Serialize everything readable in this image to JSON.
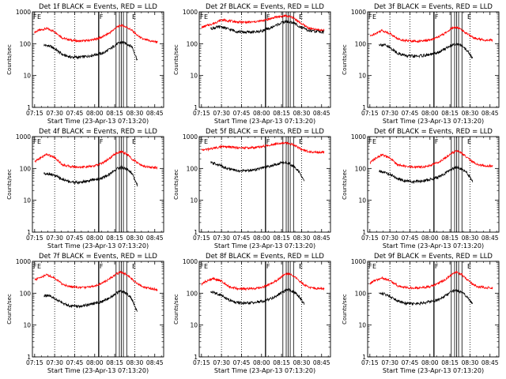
{
  "chart_data": [
    {
      "type": "line",
      "title": "Det 1f BLACK = Events, RED = LLD",
      "xlabel": "Start Time (23-Apr-13 07:13:20)",
      "ylabel": "Counts/sec",
      "yscale": "log",
      "ylim": [
        1,
        1000
      ],
      "xlim": [
        "07:13:20",
        "08:51:40"
      ],
      "x_ticks": [
        "07:15",
        "07:30",
        "07:45",
        "08:00",
        "08:15",
        "08:30",
        "08:45"
      ],
      "y_ticks": [
        "1",
        "10",
        "100",
        "1000"
      ],
      "event_marker_labels": [
        "F",
        "E",
        "F",
        "E"
      ],
      "series": [
        {
          "color": "#ff0000",
          "x": [
            "07:15",
            "07:18",
            "07:24",
            "07:30",
            "07:36",
            "07:42",
            "07:48",
            "07:54",
            "08:00",
            "08:06",
            "08:12",
            "08:16",
            "08:20",
            "08:24",
            "08:28",
            "08:32",
            "08:36",
            "08:42",
            "08:47"
          ],
          "values": [
            230,
            260,
            300,
            240,
            150,
            130,
            120,
            125,
            135,
            165,
            230,
            320,
            380,
            330,
            260,
            180,
            140,
            120,
            115
          ]
        },
        {
          "color": "#000000",
          "x": [
            "07:22",
            "07:26",
            "07:30",
            "07:36",
            "07:42",
            "07:48",
            "07:54",
            "08:00",
            "08:06",
            "08:12",
            "08:16",
            "08:20",
            "08:24",
            "08:28",
            "08:32"
          ],
          "values": [
            90,
            85,
            70,
            45,
            38,
            37,
            40,
            45,
            50,
            70,
            95,
            110,
            100,
            80,
            30
          ]
        }
      ]
    },
    {
      "type": "line",
      "title": "Det 2f BLACK = Events, RED = LLD",
      "xlabel": "Start Time (23-Apr-13 07:13:20)",
      "ylabel": "Counts/sec",
      "yscale": "log",
      "ylim": [
        1,
        1000
      ],
      "xlim": [
        "07:13:20",
        "08:51:40"
      ],
      "x_ticks": [
        "07:15",
        "07:30",
        "07:45",
        "08:00",
        "08:15",
        "08:30",
        "08:45"
      ],
      "y_ticks": [
        "1",
        "10",
        "100",
        "1000"
      ],
      "event_marker_labels": [
        "F",
        "E",
        "F",
        "E"
      ],
      "series": [
        {
          "color": "#ff0000",
          "x": [
            "07:15",
            "07:20",
            "07:25",
            "07:30",
            "07:36",
            "07:42",
            "07:48",
            "07:54",
            "08:00",
            "08:06",
            "08:12",
            "08:18",
            "08:24",
            "08:30",
            "08:36",
            "08:42",
            "08:47"
          ],
          "values": [
            320,
            380,
            450,
            560,
            520,
            480,
            470,
            480,
            520,
            600,
            700,
            750,
            650,
            420,
            300,
            270,
            265
          ]
        },
        {
          "color": "#000000",
          "x": [
            "07:22",
            "07:26",
            "07:30",
            "07:36",
            "07:42",
            "07:48",
            "07:54",
            "08:00",
            "08:06",
            "08:12",
            "08:18",
            "08:24",
            "08:30",
            "08:36",
            "08:42",
            "08:47"
          ],
          "values": [
            300,
            320,
            340,
            280,
            240,
            230,
            230,
            250,
            300,
            400,
            500,
            450,
            320,
            250,
            240,
            235
          ]
        }
      ]
    },
    {
      "type": "line",
      "title": "Det 3f BLACK = Events, RED = LLD",
      "xlabel": "Start Time (23-Apr-13 07:13:20)",
      "ylabel": "Counts/sec",
      "yscale": "log",
      "ylim": [
        1,
        1000
      ],
      "xlim": [
        "07:13:20",
        "08:51:40"
      ],
      "x_ticks": [
        "07:15",
        "07:30",
        "07:45",
        "08:00",
        "08:15",
        "08:30",
        "08:45"
      ],
      "y_ticks": [
        "1",
        "10",
        "100",
        "1000"
      ],
      "event_marker_labels": [
        "F",
        "E",
        "F",
        "E"
      ],
      "series": [
        {
          "color": "#ff0000",
          "x": [
            "07:15",
            "07:18",
            "07:24",
            "07:30",
            "07:36",
            "07:42",
            "07:48",
            "07:54",
            "08:00",
            "08:06",
            "08:12",
            "08:16",
            "08:20",
            "08:24",
            "08:28",
            "08:32",
            "08:36",
            "08:42",
            "08:47"
          ],
          "values": [
            170,
            200,
            260,
            210,
            140,
            125,
            120,
            120,
            130,
            160,
            220,
            300,
            330,
            270,
            200,
            160,
            140,
            130,
            130
          ]
        },
        {
          "color": "#000000",
          "x": [
            "07:22",
            "07:26",
            "07:30",
            "07:36",
            "07:42",
            "07:48",
            "07:54",
            "08:00",
            "08:06",
            "08:12",
            "08:16",
            "08:20",
            "08:24",
            "08:28",
            "08:32"
          ],
          "values": [
            95,
            90,
            75,
            50,
            42,
            40,
            42,
            45,
            52,
            72,
            90,
            100,
            85,
            60,
            35
          ]
        }
      ]
    },
    {
      "type": "line",
      "title": "Det 4f BLACK = Events, RED = LLD",
      "xlabel": "Start Time (23-Apr-13 07:13:20)",
      "ylabel": "Counts/sec",
      "yscale": "log",
      "ylim": [
        1,
        1000
      ],
      "xlim": [
        "07:13:20",
        "08:51:40"
      ],
      "x_ticks": [
        "07:15",
        "07:30",
        "07:45",
        "08:00",
        "08:15",
        "08:30",
        "08:45"
      ],
      "y_ticks": [
        "1",
        "10",
        "100",
        "1000"
      ],
      "event_marker_labels": [
        "F",
        "E",
        "F",
        "E"
      ],
      "series": [
        {
          "color": "#ff0000",
          "x": [
            "07:15",
            "07:18",
            "07:24",
            "07:30",
            "07:36",
            "07:42",
            "07:48",
            "07:54",
            "08:00",
            "08:06",
            "08:12",
            "08:16",
            "08:20",
            "08:24",
            "08:28",
            "08:32",
            "08:36",
            "08:42",
            "08:47"
          ],
          "values": [
            160,
            200,
            280,
            220,
            130,
            115,
            110,
            112,
            120,
            150,
            220,
            300,
            340,
            280,
            200,
            150,
            120,
            110,
            105
          ]
        },
        {
          "color": "#000000",
          "x": [
            "07:22",
            "07:26",
            "07:30",
            "07:36",
            "07:42",
            "07:48",
            "07:54",
            "08:00",
            "08:06",
            "08:12",
            "08:16",
            "08:20",
            "08:24",
            "08:28",
            "08:32"
          ],
          "values": [
            70,
            68,
            60,
            45,
            38,
            36,
            40,
            45,
            50,
            70,
            95,
            110,
            95,
            70,
            30
          ]
        }
      ]
    },
    {
      "type": "line",
      "title": "Det 5f BLACK = Events, RED = LLD",
      "xlabel": "Start Time (23-Apr-13 07:13:20)",
      "ylabel": "Counts/sec",
      "yscale": "log",
      "ylim": [
        1,
        1000
      ],
      "xlim": [
        "07:13:20",
        "08:51:40"
      ],
      "x_ticks": [
        "07:15",
        "07:30",
        "07:45",
        "08:00",
        "08:15",
        "08:30",
        "08:45"
      ],
      "y_ticks": [
        "1",
        "10",
        "100",
        "1000"
      ],
      "event_marker_labels": [
        "F",
        "E",
        "F",
        "E"
      ],
      "series": [
        {
          "color": "#ff0000",
          "x": [
            "07:15",
            "07:20",
            "07:25",
            "07:30",
            "07:36",
            "07:42",
            "07:48",
            "07:54",
            "08:00",
            "08:06",
            "08:12",
            "08:18",
            "08:24",
            "08:30",
            "08:36",
            "08:42",
            "08:47"
          ],
          "values": [
            380,
            400,
            440,
            480,
            470,
            450,
            440,
            450,
            480,
            540,
            620,
            640,
            560,
            400,
            330,
            320,
            320
          ]
        },
        {
          "color": "#000000",
          "x": [
            "07:22",
            "07:26",
            "07:30",
            "07:36",
            "07:42",
            "07:48",
            "07:54",
            "08:00",
            "08:06",
            "08:12",
            "08:18",
            "08:24",
            "08:28",
            "08:32"
          ],
          "values": [
            150,
            140,
            120,
            95,
            85,
            85,
            90,
            100,
            115,
            140,
            160,
            120,
            80,
            40
          ]
        }
      ]
    },
    {
      "type": "line",
      "title": "Det 6f BLACK = Events, RED = LLD",
      "xlabel": "Start Time (23-Apr-13 07:13:20)",
      "ylabel": "Counts/sec",
      "yscale": "log",
      "ylim": [
        1,
        1000
      ],
      "xlim": [
        "07:13:20",
        "08:51:40"
      ],
      "x_ticks": [
        "07:15",
        "07:30",
        "07:45",
        "08:00",
        "08:15",
        "08:30",
        "08:45"
      ],
      "y_ticks": [
        "1",
        "10",
        "100",
        "1000"
      ],
      "event_marker_labels": [
        "F",
        "E",
        "F",
        "E"
      ],
      "series": [
        {
          "color": "#ff0000",
          "x": [
            "07:15",
            "07:18",
            "07:24",
            "07:30",
            "07:36",
            "07:42",
            "07:48",
            "07:54",
            "08:00",
            "08:06",
            "08:12",
            "08:16",
            "08:20",
            "08:24",
            "08:28",
            "08:32",
            "08:36",
            "08:42",
            "08:47"
          ],
          "values": [
            150,
            190,
            270,
            210,
            130,
            115,
            110,
            112,
            122,
            155,
            220,
            300,
            360,
            300,
            220,
            160,
            130,
            120,
            120
          ]
        },
        {
          "color": "#000000",
          "x": [
            "07:22",
            "07:26",
            "07:30",
            "07:36",
            "07:42",
            "07:48",
            "07:54",
            "08:00",
            "08:06",
            "08:12",
            "08:16",
            "08:20",
            "08:24",
            "08:28",
            "08:32"
          ],
          "values": [
            80,
            75,
            65,
            48,
            40,
            38,
            40,
            45,
            52,
            72,
            95,
            110,
            95,
            70,
            40
          ]
        }
      ]
    },
    {
      "type": "line",
      "title": "Det 7f BLACK = Events, RED = LLD",
      "xlabel": "Start Time (23-Apr-13 07:13:20)",
      "ylabel": "Counts/sec",
      "yscale": "log",
      "ylim": [
        1,
        1000
      ],
      "xlim": [
        "07:13:20",
        "08:51:40"
      ],
      "x_ticks": [
        "07:15",
        "07:30",
        "07:45",
        "08:00",
        "08:15",
        "08:30",
        "08:45"
      ],
      "y_ticks": [
        "1",
        "10",
        "100",
        "1000"
      ],
      "event_marker_labels": [
        "F",
        "E",
        "F",
        "E"
      ],
      "series": [
        {
          "color": "#ff0000",
          "x": [
            "07:15",
            "07:18",
            "07:24",
            "07:30",
            "07:36",
            "07:42",
            "07:48",
            "07:54",
            "08:00",
            "08:06",
            "08:12",
            "08:16",
            "08:20",
            "08:24",
            "08:28",
            "08:32",
            "08:36",
            "08:42",
            "08:47"
          ],
          "values": [
            260,
            300,
            380,
            300,
            190,
            160,
            150,
            155,
            170,
            210,
            300,
            400,
            460,
            380,
            280,
            200,
            160,
            140,
            130
          ]
        },
        {
          "color": "#000000",
          "x": [
            "07:22",
            "07:26",
            "07:30",
            "07:36",
            "07:42",
            "07:48",
            "07:54",
            "08:00",
            "08:06",
            "08:12",
            "08:16",
            "08:20",
            "08:24",
            "08:28",
            "08:32"
          ],
          "values": [
            85,
            80,
            68,
            48,
            40,
            38,
            42,
            48,
            55,
            75,
            100,
            115,
            95,
            65,
            25
          ]
        }
      ]
    },
    {
      "type": "line",
      "title": "Det 8f BLACK = Events, RED = LLD",
      "xlabel": "Start Time (23-Apr-13 07:13:20)",
      "ylabel": "Counts/sec",
      "yscale": "log",
      "ylim": [
        1,
        1000
      ],
      "xlim": [
        "07:13:20",
        "08:51:40"
      ],
      "x_ticks": [
        "07:15",
        "07:30",
        "07:45",
        "08:00",
        "08:15",
        "08:30",
        "08:45"
      ],
      "y_ticks": [
        "1",
        "10",
        "100",
        "1000"
      ],
      "event_marker_labels": [
        "F",
        "E",
        "F",
        "E"
      ],
      "series": [
        {
          "color": "#ff0000",
          "x": [
            "07:15",
            "07:18",
            "07:24",
            "07:30",
            "07:36",
            "07:42",
            "07:48",
            "07:54",
            "08:00",
            "08:06",
            "08:12",
            "08:16",
            "08:20",
            "08:24",
            "08:28",
            "08:32",
            "08:36",
            "08:42",
            "08:47"
          ],
          "values": [
            190,
            230,
            290,
            240,
            160,
            140,
            135,
            140,
            150,
            190,
            260,
            360,
            420,
            350,
            250,
            180,
            150,
            140,
            135
          ]
        },
        {
          "color": "#000000",
          "x": [
            "07:22",
            "07:26",
            "07:30",
            "07:36",
            "07:42",
            "07:48",
            "07:54",
            "08:00",
            "08:06",
            "08:12",
            "08:16",
            "08:20",
            "08:24",
            "08:28",
            "08:32"
          ],
          "values": [
            110,
            100,
            85,
            60,
            50,
            48,
            50,
            55,
            65,
            85,
            110,
            130,
            110,
            80,
            45
          ]
        }
      ]
    },
    {
      "type": "line",
      "title": "Det 9f BLACK = Events, RED = LLD",
      "xlabel": "Start Time (23-Apr-13 07:13:20)",
      "ylabel": "Counts/sec",
      "yscale": "log",
      "ylim": [
        1,
        1000
      ],
      "xlim": [
        "07:13:20",
        "08:51:40"
      ],
      "x_ticks": [
        "07:15",
        "07:30",
        "07:45",
        "08:00",
        "08:15",
        "08:30",
        "08:45"
      ],
      "y_ticks": [
        "1",
        "10",
        "100",
        "1000"
      ],
      "event_marker_labels": [
        "F",
        "E",
        "F",
        "E"
      ],
      "series": [
        {
          "color": "#ff0000",
          "x": [
            "07:15",
            "07:18",
            "07:24",
            "07:30",
            "07:36",
            "07:42",
            "07:48",
            "07:54",
            "08:00",
            "08:06",
            "08:12",
            "08:16",
            "08:20",
            "08:24",
            "08:28",
            "08:32",
            "08:36",
            "08:42",
            "08:47"
          ],
          "values": [
            200,
            240,
            300,
            250,
            170,
            150,
            145,
            150,
            160,
            200,
            280,
            380,
            450,
            380,
            270,
            190,
            160,
            150,
            150
          ]
        },
        {
          "color": "#000000",
          "x": [
            "07:22",
            "07:26",
            "07:30",
            "07:36",
            "07:42",
            "07:48",
            "07:54",
            "08:00",
            "08:06",
            "08:12",
            "08:16",
            "08:20",
            "08:24",
            "08:28",
            "08:32"
          ],
          "values": [
            100,
            95,
            80,
            58,
            48,
            46,
            48,
            55,
            62,
            85,
            110,
            125,
            105,
            75,
            45
          ]
        }
      ]
    }
  ]
}
